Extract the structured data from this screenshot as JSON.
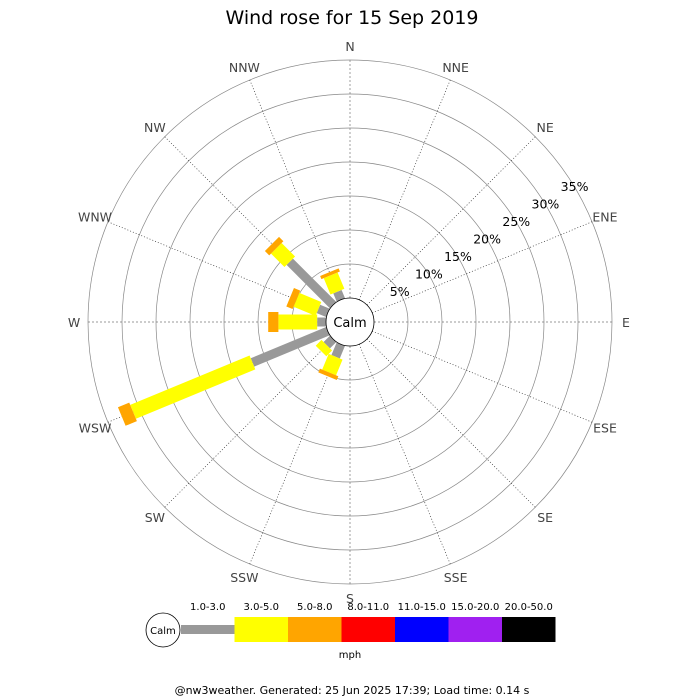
{
  "chart_data": {
    "type": "wind-rose",
    "title": "Wind rose for 15 Sep 2019",
    "directions": [
      "N",
      "NNE",
      "NE",
      "ENE",
      "E",
      "ESE",
      "SE",
      "SSE",
      "S",
      "SSW",
      "SW",
      "WSW",
      "W",
      "WNW",
      "NW",
      "NNW"
    ],
    "radial_ticks": [
      "5%",
      "10%",
      "15%",
      "20%",
      "25%",
      "30%",
      "35%"
    ],
    "radial_max_percent": 35,
    "calm_label": "Calm",
    "speed_bins": [
      "1.0-3.0",
      "3.0-5.0",
      "5.0-8.0",
      "8.0-11.0",
      "11.0-15.0",
      "15.0-20.0",
      "20.0-50.0"
    ],
    "speed_colors": [
      "#999999",
      "#ffff00",
      "#ffa500",
      "#ff0000",
      "#0000ff",
      "#a020f0",
      "#000000"
    ],
    "speed_unit": "mph",
    "series": [
      {
        "direction": "SSW",
        "cumulative_percent": [
          2.0,
          4.5,
          5.1
        ]
      },
      {
        "direction": "SW",
        "cumulative_percent": [
          1.3,
          2.5
        ]
      },
      {
        "direction": "WSW",
        "cumulative_percent": [
          12.0,
          31.0,
          32.8
        ]
      },
      {
        "direction": "W",
        "cumulative_percent": [
          1.3,
          7.0,
          8.5
        ]
      },
      {
        "direction": "WNW",
        "cumulative_percent": [
          1.5,
          5.0,
          6.0
        ]
      },
      {
        "direction": "NW",
        "cumulative_percent": [
          9.0,
          11.8,
          12.7
        ]
      },
      {
        "direction": "NNW",
        "cumulative_percent": [
          1.3,
          3.9,
          4.4
        ]
      }
    ]
  },
  "footer": "@nw3weather. Generated: 25 Jun 2025 17:39; Load time: 0.14 s"
}
